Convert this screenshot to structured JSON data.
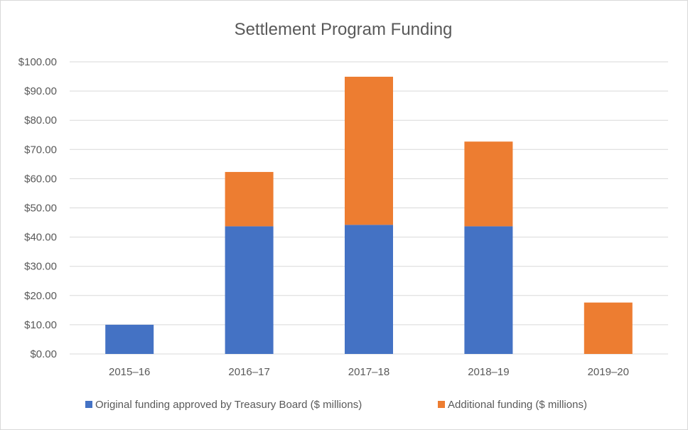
{
  "chart_data": {
    "type": "bar",
    "stacked": true,
    "title": "Settlement Program Funding",
    "xlabel": "",
    "ylabel": "",
    "categories": [
      "2015–16",
      "2016–17",
      "2017–18",
      "2018–19",
      "2019–20"
    ],
    "ylim": [
      0,
      100
    ],
    "y_ticks": [
      "$0.00",
      "$10.00",
      "$20.00",
      "$30.00",
      "$40.00",
      "$50.00",
      "$60.00",
      "$70.00",
      "$80.00",
      "$90.00",
      "$100.00"
    ],
    "series": [
      {
        "name": "Original funding approved by Treasury Board ($ millions)",
        "color": "#4472c4",
        "values": [
          10,
          43.7,
          44.2,
          43.7,
          0
        ]
      },
      {
        "name": "Additional funding ($ millions)",
        "color": "#ed7d31",
        "values": [
          0,
          18.6,
          50.7,
          29.0,
          17.6
        ]
      }
    ],
    "grid": true,
    "legend_position": "bottom"
  }
}
